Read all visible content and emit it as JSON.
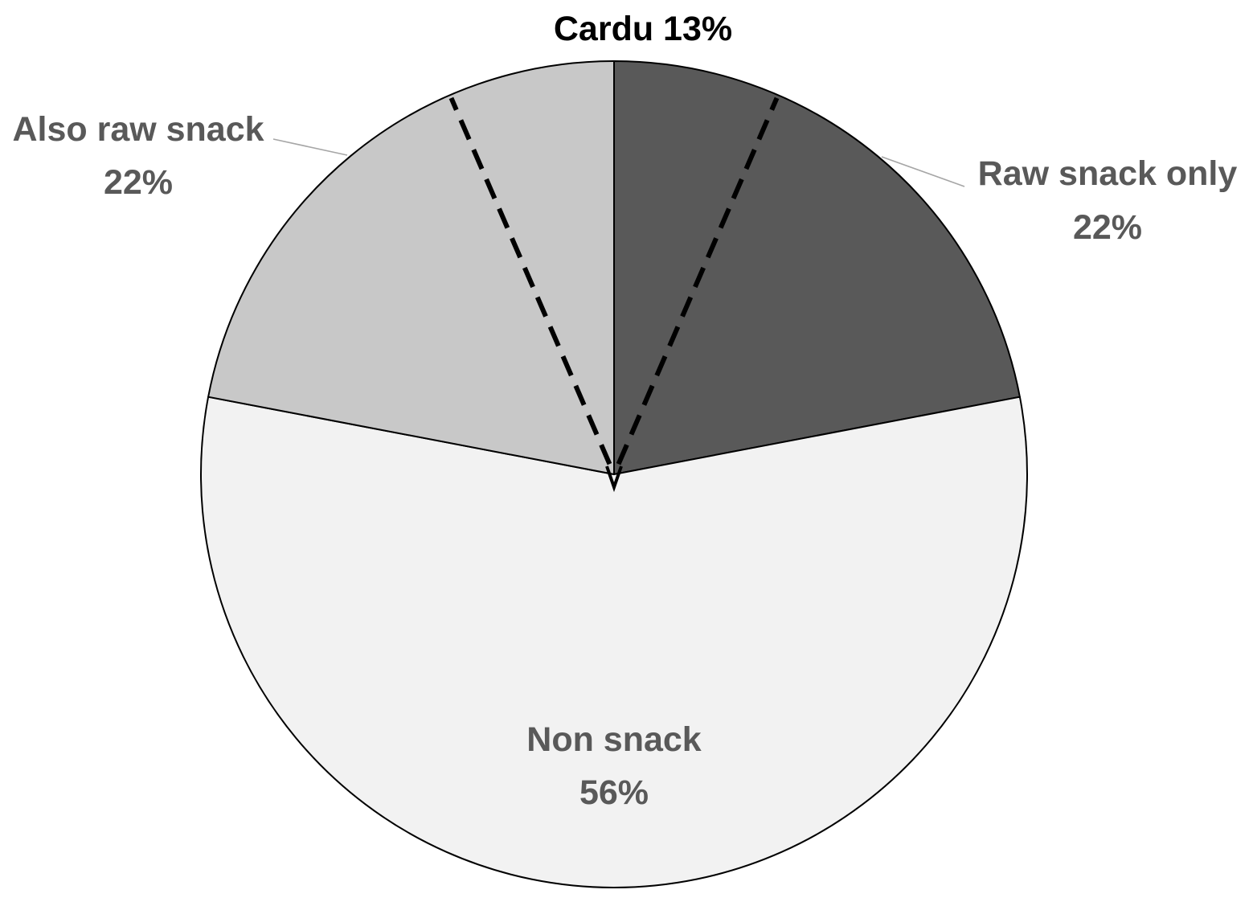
{
  "chart_data": {
    "type": "pie",
    "slices": [
      {
        "key": "raw",
        "label": "Raw snack only",
        "value": 22,
        "value_label": "22%",
        "color": "#595959"
      },
      {
        "key": "non",
        "label": "Non snack",
        "value": 56,
        "value_label": "56%",
        "color": "#f2f2f2"
      },
      {
        "key": "also",
        "label": "Also raw snack",
        "value": 22,
        "value_label": "22%",
        "color": "#c8c8c8"
      }
    ],
    "sub_slice": {
      "label": "Cardu 13%",
      "value": 13,
      "style": "dashed",
      "spans": [
        "Also raw snack",
        "Raw snack only"
      ]
    },
    "start": "12 o'clock",
    "direction": "clockwise",
    "label_color": "#595959",
    "outline_color": "#000000"
  }
}
